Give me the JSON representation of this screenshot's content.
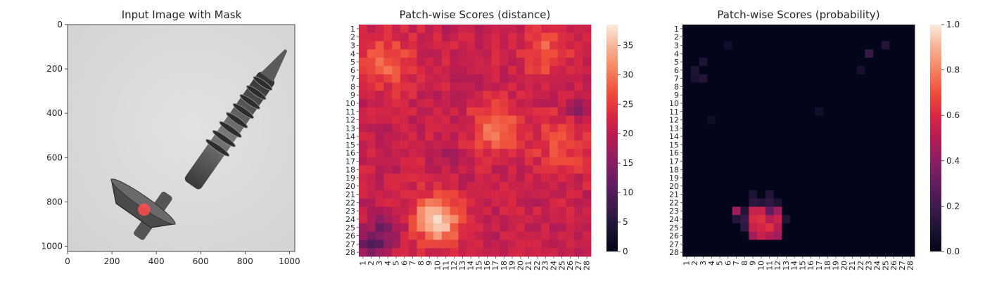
{
  "charts": [
    {
      "type": "image",
      "title": "Input Image with Mask",
      "x_ticks": [
        0,
        200,
        400,
        600,
        800,
        1000
      ],
      "y_ticks": [
        0,
        200,
        400,
        600,
        800,
        1000
      ],
      "xlim": [
        0,
        1024
      ],
      "ylim": [
        1024,
        0
      ],
      "subject": "grey metal screw on light grey background, diagonal from bottom-left head to top-right tip",
      "mask": {
        "color": "#ff4b4b",
        "center": [
          345,
          835
        ],
        "radius": 28
      }
    },
    {
      "type": "heatmap",
      "title": "Patch-wise Scores (distance)",
      "rows": 28,
      "cols": 28,
      "x_tick_labels": [
        "1",
        "2",
        "3",
        "4",
        "5",
        "6",
        "7",
        "8",
        "9",
        "10",
        "11",
        "12",
        "13",
        "14",
        "15",
        "16",
        "17",
        "18",
        "19",
        "20",
        "21",
        "22",
        "23",
        "24",
        "25",
        "26",
        "27",
        "28"
      ],
      "y_tick_labels": [
        "1",
        "2",
        "3",
        "4",
        "5",
        "6",
        "7",
        "8",
        "9",
        "10",
        "11",
        "12",
        "13",
        "14",
        "15",
        "16",
        "17",
        "18",
        "19",
        "20",
        "21",
        "22",
        "23",
        "24",
        "25",
        "26",
        "27",
        "28"
      ],
      "colorbar": {
        "min": 0,
        "max": 38.5,
        "ticks": [
          0,
          5,
          10,
          15,
          20,
          25,
          30,
          35
        ],
        "colormap": "rocket"
      },
      "base_level": 21,
      "hotspots": [
        {
          "row": 24,
          "col": 10,
          "peak": 37,
          "spread": 2.0
        },
        {
          "row": 13,
          "col": 17,
          "peak": 29,
          "spread": 2.2
        },
        {
          "row": 5,
          "col": 4,
          "peak": 28,
          "spread": 2.4
        },
        {
          "row": 4,
          "col": 23,
          "peak": 28,
          "spread": 2.0
        },
        {
          "row": 15,
          "col": 25,
          "peak": 26,
          "spread": 2.6
        }
      ],
      "coldspots": [
        {
          "row": 27,
          "col": 2,
          "floor": 12,
          "spread": 1.4
        },
        {
          "row": 25,
          "col": 4,
          "floor": 15,
          "spread": 1.2
        },
        {
          "row": 11,
          "col": 27,
          "floor": 16,
          "spread": 1.0
        },
        {
          "row": 16,
          "col": 11,
          "floor": 17,
          "spread": 1.0
        }
      ]
    },
    {
      "type": "heatmap",
      "title": "Patch-wise Scores (probability)",
      "rows": 28,
      "cols": 28,
      "x_tick_labels": [
        "1",
        "2",
        "3",
        "4",
        "5",
        "6",
        "7",
        "8",
        "9",
        "10",
        "11",
        "12",
        "13",
        "14",
        "15",
        "16",
        "17",
        "18",
        "19",
        "20",
        "21",
        "22",
        "23",
        "24",
        "25",
        "26",
        "27",
        "28"
      ],
      "y_tick_labels": [
        "1",
        "2",
        "3",
        "4",
        "5",
        "6",
        "7",
        "8",
        "9",
        "10",
        "11",
        "12",
        "13",
        "14",
        "15",
        "16",
        "17",
        "18",
        "19",
        "20",
        "21",
        "22",
        "23",
        "24",
        "25",
        "26",
        "27",
        "28"
      ],
      "colorbar": {
        "min": 0,
        "max": 1.0,
        "ticks": [
          0.0,
          0.2,
          0.4,
          0.6,
          0.8,
          1.0
        ],
        "tick_labels": [
          "0.0",
          "0.2",
          "0.4",
          "0.6",
          "0.8",
          "1.0"
        ],
        "colormap": "rocket"
      },
      "cells": [
        {
          "row": 23,
          "col": 7,
          "v": 0.45
        },
        {
          "row": 23,
          "col": 9,
          "v": 0.55
        },
        {
          "row": 23,
          "col": 10,
          "v": 0.55
        },
        {
          "row": 23,
          "col": 11,
          "v": 0.3
        },
        {
          "row": 23,
          "col": 12,
          "v": 0.45
        },
        {
          "row": 24,
          "col": 9,
          "v": 0.6
        },
        {
          "row": 24,
          "col": 10,
          "v": 0.62
        },
        {
          "row": 24,
          "col": 11,
          "v": 0.5
        },
        {
          "row": 24,
          "col": 12,
          "v": 0.55
        },
        {
          "row": 25,
          "col": 9,
          "v": 0.55
        },
        {
          "row": 25,
          "col": 10,
          "v": 0.58
        },
        {
          "row": 25,
          "col": 11,
          "v": 0.62
        },
        {
          "row": 25,
          "col": 12,
          "v": 0.5
        },
        {
          "row": 26,
          "col": 9,
          "v": 0.45
        },
        {
          "row": 26,
          "col": 10,
          "v": 0.55
        },
        {
          "row": 26,
          "col": 11,
          "v": 0.5
        },
        {
          "row": 26,
          "col": 12,
          "v": 0.45
        },
        {
          "row": 22,
          "col": 9,
          "v": 0.15
        },
        {
          "row": 22,
          "col": 10,
          "v": 0.12
        },
        {
          "row": 22,
          "col": 11,
          "v": 0.15
        },
        {
          "row": 22,
          "col": 12,
          "v": 0.1
        },
        {
          "row": 21,
          "col": 9,
          "v": 0.1
        },
        {
          "row": 21,
          "col": 11,
          "v": 0.12
        },
        {
          "row": 24,
          "col": 7,
          "v": 0.12
        },
        {
          "row": 24,
          "col": 8,
          "v": 0.18
        },
        {
          "row": 25,
          "col": 8,
          "v": 0.15
        },
        {
          "row": 23,
          "col": 8,
          "v": 0.12
        },
        {
          "row": 24,
          "col": 13,
          "v": 0.1
        },
        {
          "row": 5,
          "col": 3,
          "v": 0.1
        },
        {
          "row": 6,
          "col": 2,
          "v": 0.1
        },
        {
          "row": 7,
          "col": 3,
          "v": 0.12
        },
        {
          "row": 7,
          "col": 2,
          "v": 0.08
        },
        {
          "row": 3,
          "col": 6,
          "v": 0.06
        },
        {
          "row": 4,
          "col": 23,
          "v": 0.18
        },
        {
          "row": 3,
          "col": 25,
          "v": 0.12
        },
        {
          "row": 6,
          "col": 22,
          "v": 0.07
        },
        {
          "row": 11,
          "col": 17,
          "v": 0.06
        },
        {
          "row": 12,
          "col": 4,
          "v": 0.05
        }
      ]
    }
  ]
}
